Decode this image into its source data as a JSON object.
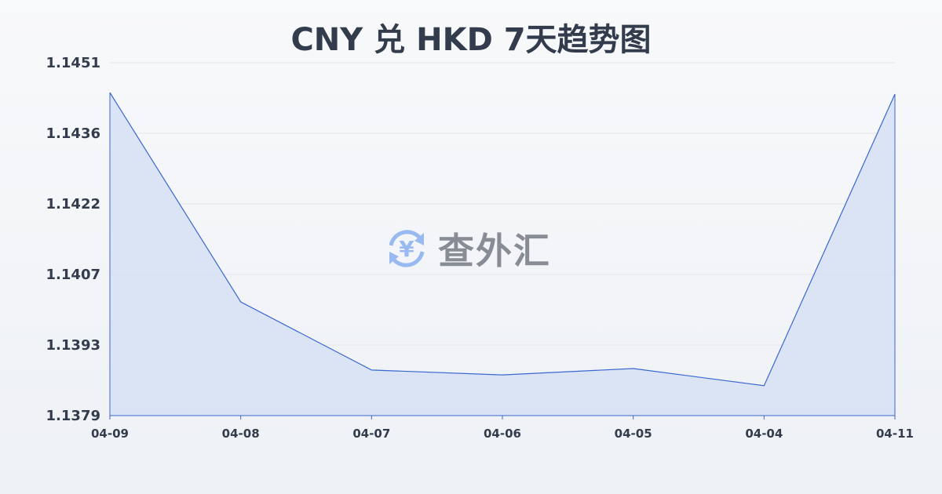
{
  "chart_data": {
    "type": "area",
    "title": "CNY 兑 HKD 7天趋势图",
    "categories": [
      "04-09",
      "04-08",
      "04-07",
      "04-06",
      "04-05",
      "04-04",
      "04-11"
    ],
    "series": [
      {
        "values": [
          1.14449,
          1.14022,
          1.13883,
          1.13873,
          1.13886,
          1.13851,
          1.14446
        ]
      }
    ],
    "yticks": [
      "1.1451",
      "1.1436",
      "1.1422",
      "1.1407",
      "1.1393",
      "1.1379"
    ],
    "ylim": [
      1.1379,
      1.1451
    ],
    "grid": true,
    "colors": {
      "line": "#3a66d0",
      "fill": "#d6e0f5",
      "title": "#333c4c"
    }
  },
  "watermark": {
    "text": "查外汇",
    "icon": "yen-exchange-icon"
  }
}
